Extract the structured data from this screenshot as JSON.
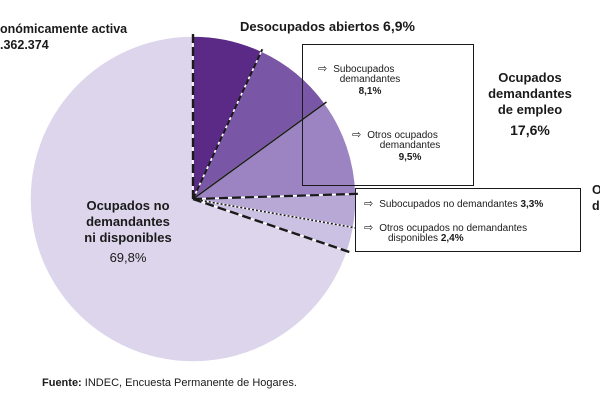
{
  "chart_data": {
    "type": "pie",
    "slices": [
      {
        "label": "Desocupados abiertos",
        "value": 6.9,
        "color": "#5a2a86"
      },
      {
        "label": "Subocupados demandantes",
        "value": 8.1,
        "color": "#7a56a6"
      },
      {
        "label": "Otros ocupados demandantes",
        "value": 9.5,
        "color": "#9b84c1"
      },
      {
        "label": "Subocupados no demandantes",
        "value": 3.3,
        "color": "#b8a8d6"
      },
      {
        "label": "Otros ocupados no demandantes disponibles",
        "value": 2.4,
        "color": "#cbc1e3"
      },
      {
        "label": "Ocupados no demandantes ni disponibles",
        "value": 69.8,
        "color": "#dcd5ec"
      }
    ]
  },
  "labels": {
    "top_left_line1": "onómicamente activa",
    "top_left_line2": ".362.374",
    "desocupados_name": "Desocupados abiertos ",
    "desocupados_pct": "6,9%",
    "sub_dem_line1": "Subocupados",
    "sub_dem_line2": "demandantes",
    "sub_dem_pct": "8,1%",
    "otros_dem_line1": "Otros ocupados",
    "otros_dem_line2": "demandantes",
    "otros_dem_pct": "9,5%",
    "group_line1": "Ocupados",
    "group_line2": "demandantes",
    "group_line3": "de empleo",
    "group_pct": "17,6%",
    "sub_nodem_name": "Subocupados no demandantes ",
    "sub_nodem_pct": "3,3%",
    "otros_nodem_line1": "Otros ocupados no demandantes",
    "otros_nodem_line2": "disponibles ",
    "otros_nodem_pct": "2,4%",
    "right_cut": "O",
    "right_cut2": "d",
    "big_line1": "Ocupados no",
    "big_line2": "demandantes",
    "big_line3": "ni disponibles",
    "big_pct": "69,8%",
    "source_label": "Fuente:",
    "source_text": " INDEC, Encuesta Permanente de Hogares."
  }
}
